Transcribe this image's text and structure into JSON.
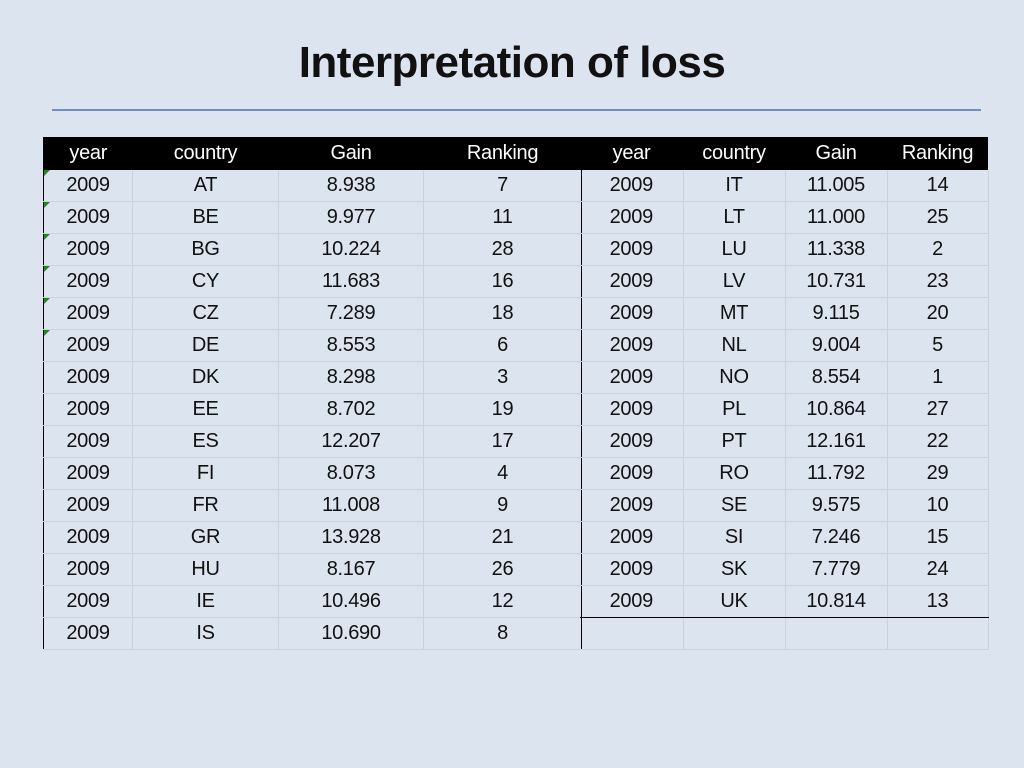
{
  "title": "Interpretation of loss",
  "left_table": {
    "headers": [
      "year",
      "country",
      "Gain",
      "Ranking"
    ],
    "rows": [
      [
        "2009",
        "AT",
        "8.938",
        "7"
      ],
      [
        "2009",
        "BE",
        "9.977",
        "11"
      ],
      [
        "2009",
        "BG",
        "10.224",
        "28"
      ],
      [
        "2009",
        "CY",
        "11.683",
        "16"
      ],
      [
        "2009",
        "CZ",
        "7.289",
        "18"
      ],
      [
        "2009",
        "DE",
        "8.553",
        "6"
      ],
      [
        "2009",
        "DK",
        "8.298",
        "3"
      ],
      [
        "2009",
        "EE",
        "8.702",
        "19"
      ],
      [
        "2009",
        "ES",
        "12.207",
        "17"
      ],
      [
        "2009",
        "FI",
        "8.073",
        "4"
      ],
      [
        "2009",
        "FR",
        "11.008",
        "9"
      ],
      [
        "2009",
        "GR",
        "13.928",
        "21"
      ],
      [
        "2009",
        "HU",
        "8.167",
        "26"
      ],
      [
        "2009",
        "IE",
        "10.496",
        "12"
      ],
      [
        "2009",
        "IS",
        "10.690",
        "8"
      ]
    ]
  },
  "right_table": {
    "headers": [
      "year",
      "country",
      "Gain",
      "Ranking"
    ],
    "rows": [
      [
        "2009",
        "IT",
        "11.005",
        "14"
      ],
      [
        "2009",
        "LT",
        "11.000",
        "25"
      ],
      [
        "2009",
        "LU",
        "11.338",
        "2"
      ],
      [
        "2009",
        "LV",
        "10.731",
        "23"
      ],
      [
        "2009",
        "MT",
        "9.115",
        "20"
      ],
      [
        "2009",
        "NL",
        "9.004",
        "5"
      ],
      [
        "2009",
        "NO",
        "8.554",
        "1"
      ],
      [
        "2009",
        "PL",
        "10.864",
        "27"
      ],
      [
        "2009",
        "PT",
        "12.161",
        "22"
      ],
      [
        "2009",
        "RO",
        "11.792",
        "29"
      ],
      [
        "2009",
        "SE",
        "9.575",
        "10"
      ],
      [
        "2009",
        "SI",
        "7.246",
        "15"
      ],
      [
        "2009",
        "SK",
        "7.779",
        "24"
      ],
      [
        "2009",
        "UK",
        "10.814",
        "13"
      ]
    ]
  },
  "colors": {
    "background": "#dce4f0",
    "header_bg": "#000000",
    "rule": "#6f8fc6",
    "comment_marker": "#1b8a1b"
  }
}
